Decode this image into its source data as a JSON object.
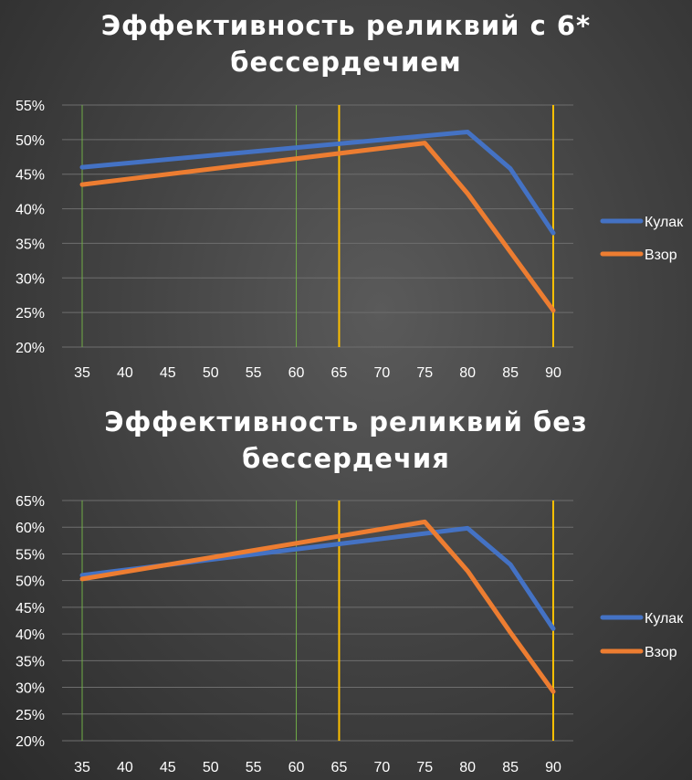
{
  "chart_data": [
    {
      "type": "line",
      "title": "Эффективность реликвий с 6*\nбессердечием",
      "categories": [
        "35",
        "40",
        "45",
        "50",
        "55",
        "60",
        "65",
        "70",
        "75",
        "80",
        "85",
        "90"
      ],
      "y_ticks": [
        "20%",
        "25%",
        "30%",
        "35%",
        "40%",
        "45%",
        "50%",
        "55%"
      ],
      "ylim": [
        20,
        55
      ],
      "grid": true,
      "legend_position": "right",
      "series": [
        {
          "name": "Кулак",
          "color": "#4472C4",
          "points": [
            [
              35,
              46.0
            ],
            [
              80,
              51.1
            ],
            [
              85,
              45.8
            ],
            [
              90,
              36.5
            ]
          ]
        },
        {
          "name": "Взор",
          "color": "#ED7D31",
          "points": [
            [
              35,
              43.5
            ],
            [
              75,
              49.5
            ],
            [
              80,
              42.2
            ],
            [
              90,
              25.3
            ]
          ]
        }
      ],
      "reference_lines": [
        {
          "x": 35,
          "color": "#70AD47"
        },
        {
          "x": 60,
          "color": "#70AD47"
        },
        {
          "x": 65,
          "color": "#FFC000"
        },
        {
          "x": 90,
          "color": "#FFC000"
        }
      ]
    },
    {
      "type": "line",
      "title": "Эффективность реликвий без\nбессердечия",
      "categories": [
        "35",
        "40",
        "45",
        "50",
        "55",
        "60",
        "65",
        "70",
        "75",
        "80",
        "85",
        "90"
      ],
      "y_ticks": [
        "20%",
        "25%",
        "30%",
        "35%",
        "40%",
        "45%",
        "50%",
        "55%",
        "60%",
        "65%"
      ],
      "ylim": [
        20,
        65
      ],
      "grid": true,
      "legend_position": "right",
      "series": [
        {
          "name": "Кулак",
          "color": "#4472C4",
          "points": [
            [
              35,
              51.0
            ],
            [
              80,
              59.8
            ],
            [
              85,
              53.0
            ],
            [
              90,
              41.0
            ]
          ]
        },
        {
          "name": "Взор",
          "color": "#ED7D31",
          "points": [
            [
              35,
              50.3
            ],
            [
              75,
              61.0
            ],
            [
              80,
              51.8
            ],
            [
              85,
              40.3
            ],
            [
              90,
              29.2
            ]
          ]
        }
      ],
      "reference_lines": [
        {
          "x": 35,
          "color": "#70AD47"
        },
        {
          "x": 60,
          "color": "#70AD47"
        },
        {
          "x": 65,
          "color": "#FFC000"
        },
        {
          "x": 90,
          "color": "#FFC000"
        }
      ]
    }
  ]
}
